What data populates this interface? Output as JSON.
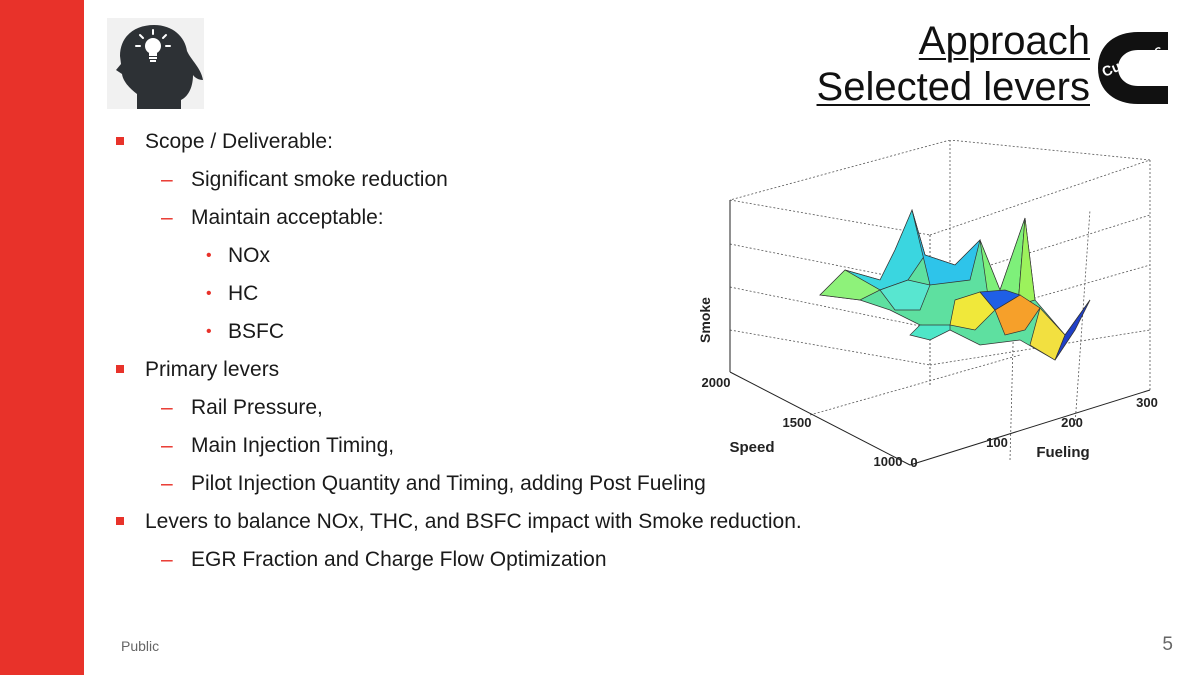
{
  "colors": {
    "accent": "#e8322a",
    "text": "#1a1a1a",
    "muted": "#666666"
  },
  "header": {
    "title_line1": "Approach",
    "title_line2": "Selected levers",
    "logo_text": "Cummins"
  },
  "bullets": [
    {
      "level": 1,
      "text": "Scope / Deliverable:"
    },
    {
      "level": 2,
      "text": "Significant smoke reduction"
    },
    {
      "level": 2,
      "text": "Maintain acceptable:"
    },
    {
      "level": 3,
      "text": "NOx"
    },
    {
      "level": 3,
      "text": "HC"
    },
    {
      "level": 3,
      "text": "BSFC"
    },
    {
      "level": 1,
      "text": "Primary levers"
    },
    {
      "level": 2,
      "text": "Rail Pressure,"
    },
    {
      "level": 2,
      "text": "Main Injection Timing,"
    },
    {
      "level": 2,
      "text": "Pilot Injection Quantity and Timing, adding Post Fueling"
    },
    {
      "level": 1,
      "text": "Levers to balance NOx, THC, and BSFC impact with Smoke reduction."
    },
    {
      "level": 2,
      "text": "EGR Fraction and Charge Flow Optimization"
    }
  ],
  "chart_data": {
    "type": "surface",
    "xlabel": "Fueling",
    "ylabel": "Speed",
    "zlabel": "Smoke",
    "xlim": [
      0,
      300
    ],
    "ylim": [
      1000,
      2000
    ],
    "x_ticks": [
      "0",
      "100",
      "200",
      "300"
    ],
    "y_ticks": [
      "1000",
      "1500",
      "2000"
    ],
    "grid": true
  },
  "footer": {
    "classification": "Public",
    "page_number": "5"
  }
}
